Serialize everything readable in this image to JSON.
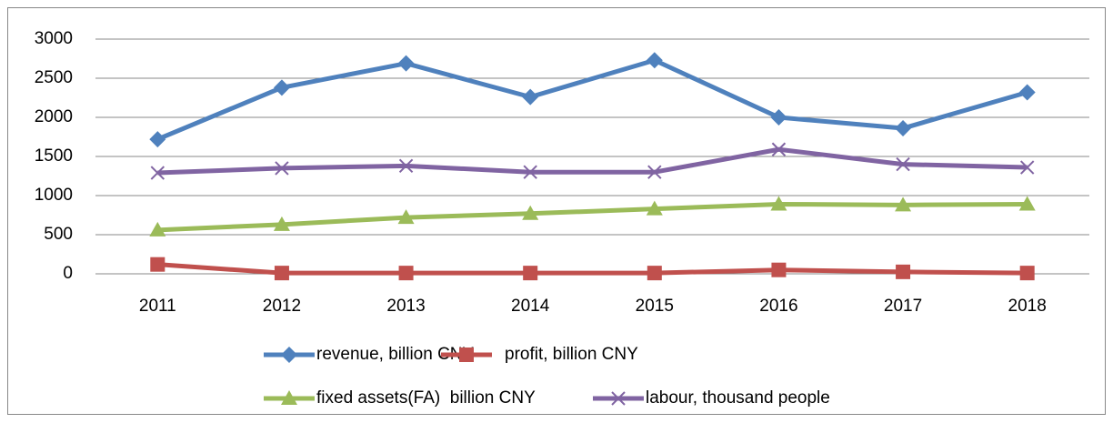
{
  "chart_data": {
    "type": "line",
    "categories": [
      "2011",
      "2012",
      "2013",
      "2014",
      "2015",
      "2016",
      "2017",
      "2018"
    ],
    "series": [
      {
        "name": "revenue, billion CNY",
        "color": "#4f81bd",
        "marker": "diamond",
        "values": [
          1720,
          2380,
          2690,
          2260,
          2730,
          2000,
          1860,
          2320
        ]
      },
      {
        "name": "profit, billion CNY",
        "color": "#c0504d",
        "marker": "square",
        "values": [
          120,
          10,
          10,
          10,
          10,
          50,
          25,
          10
        ]
      },
      {
        "name": "fixed assets(FA)  billion CNY",
        "color": "#9bbb59",
        "marker": "triangle",
        "values": [
          560,
          630,
          720,
          770,
          830,
          890,
          880,
          890
        ]
      },
      {
        "name": "labour, thousand people",
        "color": "#8064a2",
        "marker": "x",
        "values": [
          1290,
          1350,
          1380,
          1300,
          1300,
          1590,
          1400,
          1360
        ]
      }
    ],
    "ylim": [
      0,
      3000
    ],
    "yticks": [
      0,
      500,
      1000,
      1500,
      2000,
      2500,
      3000
    ],
    "grid": true,
    "legend": "bottom"
  }
}
